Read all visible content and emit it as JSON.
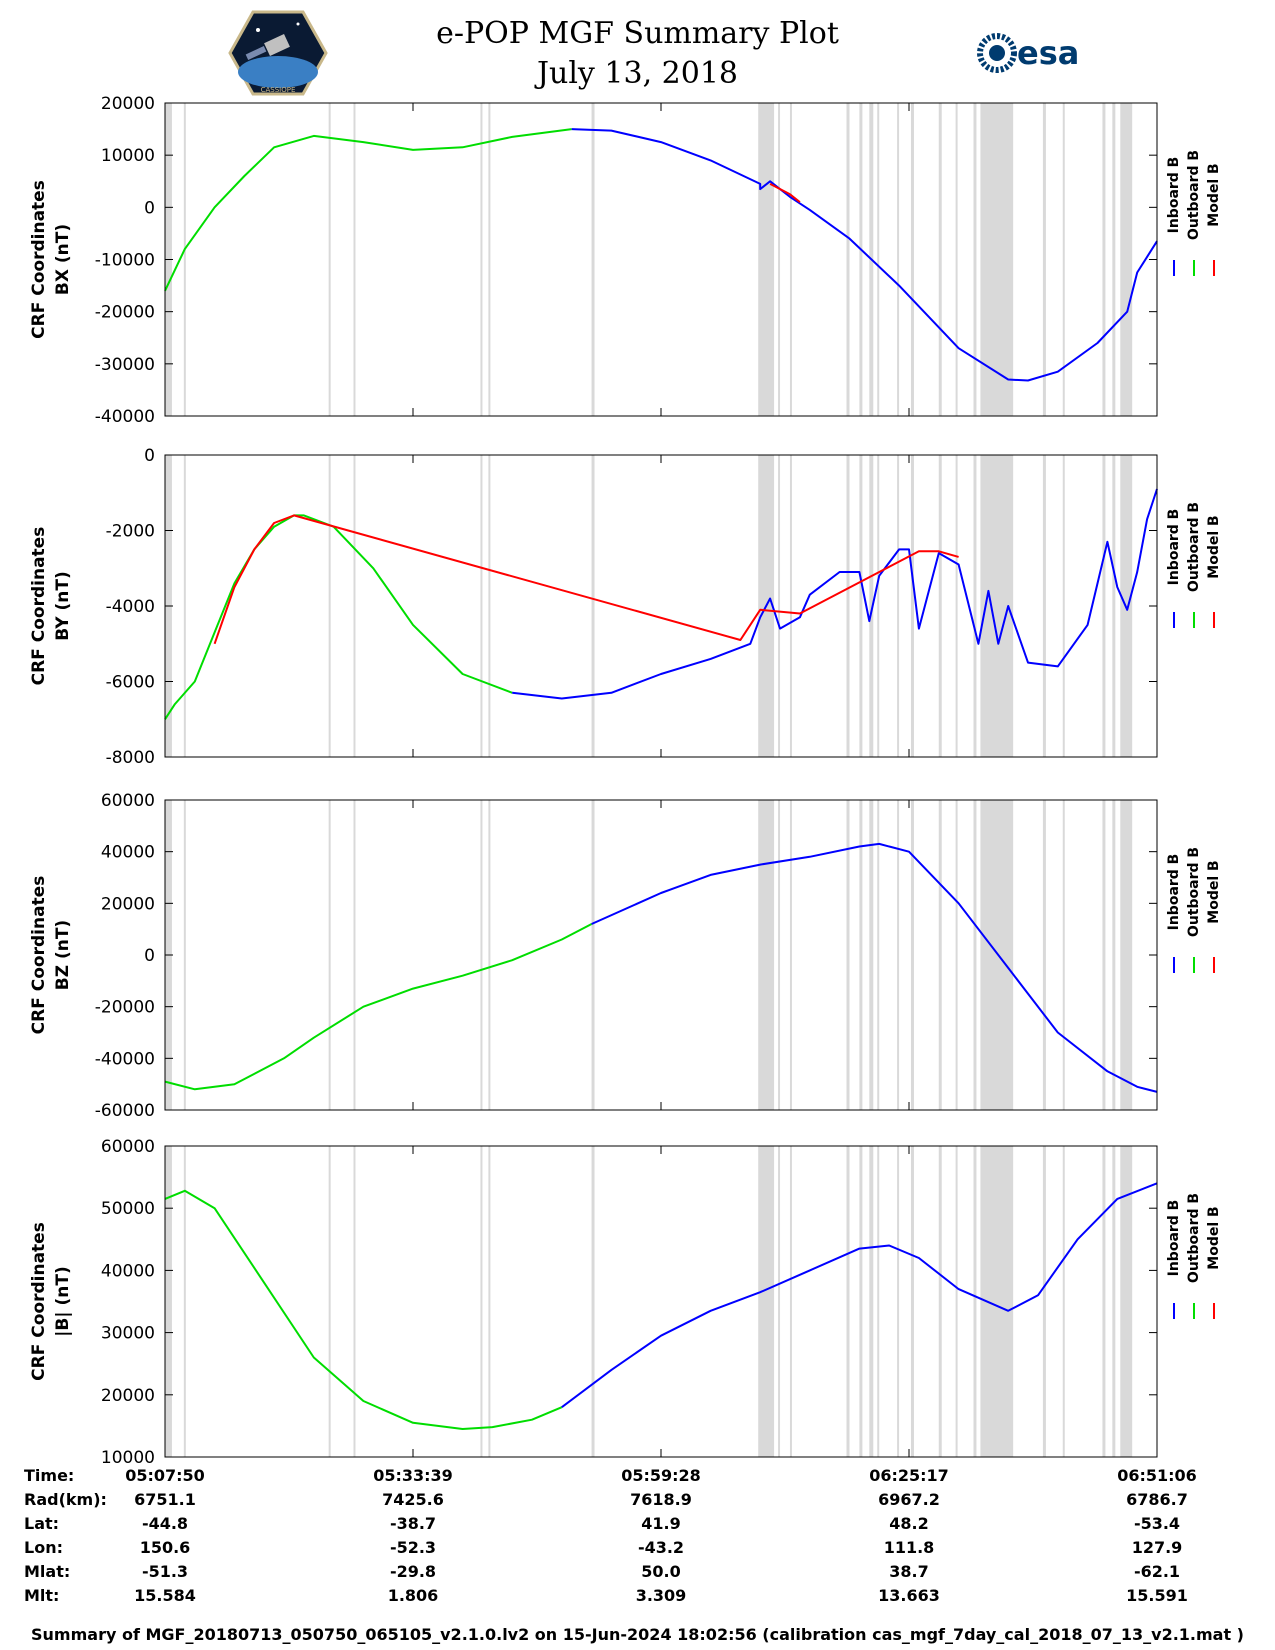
{
  "header": {
    "title": "e-POP MGF Summary Plot",
    "date": "July 13, 2018",
    "agency_logo_text": "esa",
    "mission_logo_text": "CASSIOPE"
  },
  "colors": {
    "inboard": "#0000ff",
    "outboard": "#00dd00",
    "model": "#ff0000",
    "gap_bands": "#d9d9d9"
  },
  "chart_data": [
    {
      "type": "line",
      "ylabel_line1": "CRF Coordinates",
      "ylabel_line2": "BX (nT)",
      "ylim": [
        -40000,
        20000
      ],
      "yticks": [
        20000,
        10000,
        0,
        -10000,
        -20000,
        -30000,
        -40000
      ],
      "ytick_labels": [
        "20000",
        "10000",
        "0",
        "-10000",
        "-20000",
        "-30000",
        "-40000"
      ],
      "xlim": [
        0,
        1
      ],
      "legend": [
        "Inboard B",
        "Outboard B",
        "Model B"
      ],
      "series": [
        {
          "name": "Outboard B",
          "color": "#00dd00",
          "x": [
            0,
            0.02,
            0.05,
            0.08,
            0.11,
            0.15,
            0.2,
            0.25,
            0.3,
            0.35,
            0.41
          ],
          "y": [
            -16000,
            -8000,
            0,
            6000,
            11500,
            13700,
            12500,
            11000,
            11500,
            13500,
            15000
          ]
        },
        {
          "name": "Inboard B",
          "color": "#0000ff",
          "x": [
            0.41,
            0.45,
            0.5,
            0.55,
            0.6,
            0.6,
            0.61,
            0.63,
            0.65,
            0.69,
            0.74,
            0.8,
            0.85,
            0.87,
            0.9,
            0.94,
            0.97,
            0.98,
            1.0
          ],
          "y": [
            15000,
            14700,
            12500,
            9000,
            4500,
            3500,
            5000,
            2000,
            -500,
            -6000,
            -15000,
            -27000,
            -33000,
            -33200,
            -31500,
            -26000,
            -20000,
            -12500,
            -6500
          ]
        },
        {
          "name": "Model B",
          "color": "#ff0000",
          "x": [
            0.61,
            0.63,
            0.64
          ],
          "y": [
            4500,
            2500,
            1000
          ]
        }
      ]
    },
    {
      "type": "line",
      "ylabel_line1": "CRF Coordinates",
      "ylabel_line2": "BY (nT)",
      "ylim": [
        -8000,
        0
      ],
      "yticks": [
        0,
        -2000,
        -4000,
        -6000,
        -8000
      ],
      "ytick_labels": [
        "0",
        "-2000",
        "-4000",
        "-6000",
        "-8000"
      ],
      "xlim": [
        0,
        1
      ],
      "legend": [
        "Inboard B",
        "Outboard B",
        "Model B"
      ],
      "series": [
        {
          "name": "Outboard B",
          "color": "#00dd00",
          "x": [
            0,
            0.01,
            0.03,
            0.05,
            0.07,
            0.09,
            0.11,
            0.13,
            0.14,
            0.17,
            0.21,
            0.25,
            0.3,
            0.35
          ],
          "y": [
            -7000,
            -6600,
            -6000,
            -4700,
            -3400,
            -2500,
            -1900,
            -1600,
            -1600,
            -1900,
            -3000,
            -4500,
            -5800,
            -6300
          ]
        },
        {
          "name": "Inboard B",
          "color": "#0000ff",
          "x": [
            0.35,
            0.4,
            0.45,
            0.5,
            0.55,
            0.59,
            0.6,
            0.61,
            0.62,
            0.64,
            0.65,
            0.68,
            0.7,
            0.71,
            0.72,
            0.74,
            0.75,
            0.76,
            0.78,
            0.8,
            0.82,
            0.83,
            0.84,
            0.85,
            0.87,
            0.9,
            0.93,
            0.94,
            0.95,
            0.96,
            0.97,
            0.98,
            0.99,
            1.0
          ],
          "y": [
            -6300,
            -6450,
            -6300,
            -5800,
            -5400,
            -5000,
            -4300,
            -3800,
            -4600,
            -4300,
            -3700,
            -3100,
            -3100,
            -4400,
            -3200,
            -2500,
            -2500,
            -4600,
            -2600,
            -2900,
            -5000,
            -3600,
            -5000,
            -4000,
            -5500,
            -5600,
            -4500,
            -3400,
            -2300,
            -3500,
            -4100,
            -3100,
            -1700,
            -900
          ]
        },
        {
          "name": "Model B",
          "color": "#ff0000",
          "x": [
            0.05,
            0.07,
            0.09,
            0.11,
            0.13,
            0.58,
            0.6,
            0.64,
            0.76,
            0.78,
            0.8
          ],
          "y": [
            -5000,
            -3500,
            -2500,
            -1800,
            -1600,
            -4900,
            -4100,
            -4200,
            -2550,
            -2550,
            -2700
          ]
        }
      ]
    },
    {
      "type": "line",
      "ylabel_line1": "CRF Coordinates",
      "ylabel_line2": "BZ (nT)",
      "ylim": [
        -60000,
        60000
      ],
      "yticks": [
        60000,
        40000,
        20000,
        0,
        -20000,
        -40000,
        -60000
      ],
      "ytick_labels": [
        "60000",
        "40000",
        "20000",
        "0",
        "-20000",
        "-40000",
        "-60000"
      ],
      "xlim": [
        0,
        1
      ],
      "legend": [
        "Inboard B",
        "Outboard B",
        "Model B"
      ],
      "series": [
        {
          "name": "Outboard B",
          "color": "#00dd00",
          "x": [
            0,
            0.03,
            0.07,
            0.12,
            0.15,
            0.2,
            0.25,
            0.3,
            0.35,
            0.4,
            0.43
          ],
          "y": [
            -49000,
            -52000,
            -50000,
            -40000,
            -32000,
            -20000,
            -13000,
            -8000,
            -2000,
            6000,
            12000
          ]
        },
        {
          "name": "Inboard B",
          "color": "#0000ff",
          "x": [
            0.43,
            0.5,
            0.55,
            0.6,
            0.65,
            0.7,
            0.72,
            0.75,
            0.8,
            0.85,
            0.9,
            0.95,
            0.98,
            1.0
          ],
          "y": [
            12000,
            24000,
            31000,
            35000,
            38000,
            42000,
            43000,
            40000,
            20000,
            -5000,
            -30000,
            -45000,
            -51000,
            -53000
          ]
        }
      ]
    },
    {
      "type": "line",
      "ylabel_line1": "CRF Coordinates",
      "ylabel_line2": "|B| (nT)",
      "ylim": [
        10000,
        60000
      ],
      "yticks": [
        60000,
        50000,
        40000,
        30000,
        20000,
        10000
      ],
      "ytick_labels": [
        "60000",
        "50000",
        "40000",
        "30000",
        "20000",
        "10000"
      ],
      "xlim": [
        0,
        1
      ],
      "legend": [
        "Inboard B",
        "Outboard B",
        "Model B"
      ],
      "series": [
        {
          "name": "Outboard B",
          "color": "#00dd00",
          "x": [
            0,
            0.02,
            0.05,
            0.1,
            0.15,
            0.2,
            0.25,
            0.3,
            0.33,
            0.37,
            0.4
          ],
          "y": [
            51500,
            52800,
            50000,
            38000,
            26000,
            19000,
            15500,
            14500,
            14800,
            16000,
            18000
          ]
        },
        {
          "name": "Inboard B",
          "color": "#0000ff",
          "x": [
            0.4,
            0.45,
            0.5,
            0.55,
            0.6,
            0.65,
            0.7,
            0.73,
            0.76,
            0.8,
            0.85,
            0.88,
            0.92,
            0.96,
            1.0
          ],
          "y": [
            18000,
            24000,
            29500,
            33500,
            36500,
            40000,
            43500,
            44000,
            42000,
            37000,
            33500,
            36000,
            45000,
            51500,
            54000
          ]
        }
      ]
    }
  ],
  "shading_x": [
    [
      0,
      0.007
    ],
    [
      0.019,
      0.021
    ],
    [
      0.165,
      0.167
    ],
    [
      0.19,
      0.192
    ],
    [
      0.318,
      0.32
    ],
    [
      0.326,
      0.328
    ],
    [
      0.43,
      0.433
    ],
    [
      0.598,
      0.614
    ],
    [
      0.618,
      0.62
    ],
    [
      0.63,
      0.632
    ],
    [
      0.687,
      0.69
    ],
    [
      0.7,
      0.703
    ],
    [
      0.71,
      0.714
    ],
    [
      0.718,
      0.72
    ],
    [
      0.738,
      0.74
    ],
    [
      0.752,
      0.755
    ],
    [
      0.78,
      0.783
    ],
    [
      0.797,
      0.799
    ],
    [
      0.815,
      0.818
    ],
    [
      0.822,
      0.855
    ],
    [
      0.885,
      0.888
    ],
    [
      0.905,
      0.907
    ],
    [
      0.945,
      0.948
    ],
    [
      0.955,
      0.958
    ],
    [
      0.963,
      0.975
    ]
  ],
  "info_table": {
    "labels": [
      "Time:",
      "Rad(km):",
      "Lat:",
      "Lon:",
      "Mlat:",
      "Mlt:"
    ],
    "columns": [
      [
        "05:07:50",
        "6751.1",
        "-44.8",
        "150.6",
        "-51.3",
        "15.584"
      ],
      [
        "05:33:39",
        "7425.6",
        "-38.7",
        "-52.3",
        "-29.8",
        "1.806"
      ],
      [
        "05:59:28",
        "7618.9",
        "41.9",
        "-43.2",
        "50.0",
        "3.309"
      ],
      [
        "06:25:17",
        "6967.2",
        "48.2",
        "111.8",
        "38.7",
        "13.663"
      ],
      [
        "06:51:06",
        "6786.7",
        "-53.4",
        "127.9",
        "-62.1",
        "15.591"
      ]
    ]
  },
  "footer": "Summary of MGF_20180713_050750_065105_v2.1.0.lv2 on 15-Jun-2024 18:02:56 (calibration cas_mgf_7day_cal_2018_07_13_v2.1.mat )"
}
